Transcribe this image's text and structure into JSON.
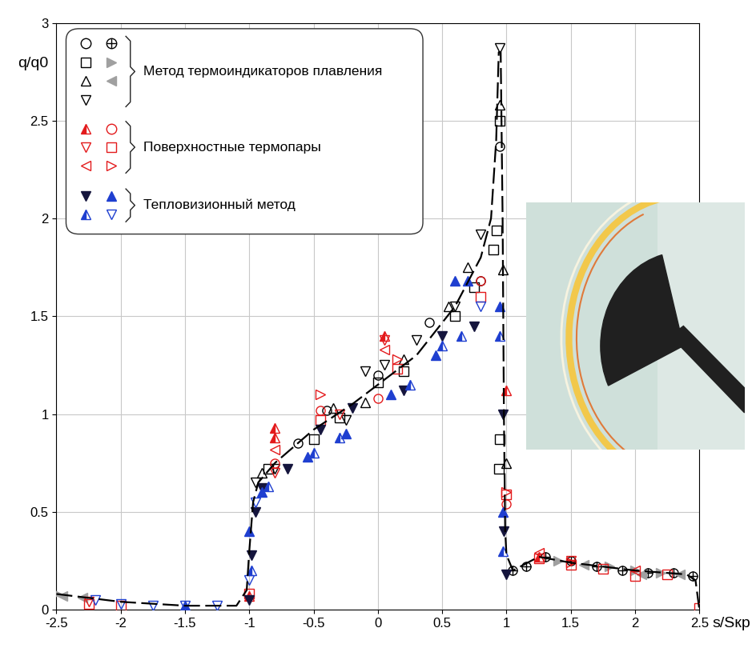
{
  "chart_data": {
    "type": "scatter",
    "x_label": "s/Sкр",
    "y_label": "q/q0",
    "xlim": [
      -2.5,
      2.5
    ],
    "xticks": [
      -2.5,
      -2,
      -1.5,
      -1,
      -0.5,
      0,
      0.5,
      1,
      1.5,
      2,
      2.5
    ],
    "ylim": [
      0,
      3
    ],
    "yticks": [
      0,
      0.5,
      1,
      1.5,
      2,
      2.5,
      3
    ],
    "grid": true,
    "curve": {
      "color": "#000000",
      "line_style": "dashed",
      "x": [
        -2.5,
        -2.0,
        -1.5,
        -1.1,
        -1.02,
        -1.0,
        -0.97,
        -0.93,
        -0.8,
        -0.5,
        -0.2,
        0.0,
        0.3,
        0.6,
        0.8,
        0.88,
        0.92,
        0.94,
        0.955,
        0.97,
        0.98,
        0.99,
        1.0,
        1.05,
        1.25,
        1.5,
        2.0,
        2.4,
        2.47,
        2.5
      ],
      "values": [
        0.08,
        0.04,
        0.02,
        0.02,
        0.1,
        0.3,
        0.55,
        0.65,
        0.75,
        0.92,
        1.05,
        1.15,
        1.3,
        1.55,
        1.8,
        2.0,
        2.4,
        2.85,
        2.85,
        2.0,
        1.0,
        0.4,
        0.28,
        0.2,
        0.27,
        0.24,
        0.2,
        0.18,
        0.15,
        0.0
      ]
    },
    "groups": [
      {
        "name": "Метод термоиндикаторов плавления",
        "series": [
          {
            "color": "#000000",
            "marker": "circle_open",
            "x": [
              -0.62,
              -0.4,
              0.0,
              0.4,
              0.8,
              0.95
            ],
            "values": [
              0.85,
              1.02,
              1.2,
              1.47,
              1.68,
              2.37
            ]
          },
          {
            "color": "#000000",
            "marker": "square_open",
            "x": [
              -0.85,
              -0.5,
              -0.3,
              0.0,
              0.2,
              0.6,
              0.75,
              0.9,
              0.92,
              0.95,
              0.95,
              0.94
            ],
            "values": [
              0.72,
              0.87,
              0.98,
              1.16,
              1.22,
              1.5,
              1.65,
              1.84,
              1.94,
              2.5,
              0.87,
              0.72
            ]
          },
          {
            "color": "#000000",
            "marker": "triangle_up_open",
            "x": [
              -0.9,
              -0.35,
              -0.1,
              0.2,
              0.55,
              0.7,
              0.95,
              0.97,
              1.0
            ],
            "values": [
              0.7,
              1.03,
              1.06,
              1.28,
              1.55,
              1.75,
              2.58,
              1.74,
              0.75
            ]
          },
          {
            "color": "#000000",
            "marker": "triangle_down_open",
            "x": [
              -0.95,
              -0.8,
              -0.25,
              -0.1,
              0.05,
              0.3,
              0.6,
              0.8,
              0.95
            ],
            "values": [
              0.65,
              0.72,
              0.97,
              1.22,
              1.25,
              1.38,
              1.55,
              1.92,
              2.87
            ]
          },
          {
            "color": "#000000",
            "marker": "circle_plus",
            "x": [
              1.05,
              1.15,
              1.3,
              1.5,
              1.7,
              1.9,
              2.1,
              2.3,
              2.45
            ],
            "values": [
              0.2,
              0.22,
              0.27,
              0.25,
              0.22,
              0.2,
              0.19,
              0.19,
              0.17
            ]
          },
          {
            "color": "#a0a0a0",
            "marker": "triangle_right_filled",
            "x": [
              -2.5,
              1.4,
              1.8,
              2.0,
              2.2
            ],
            "values": [
              0.08,
              0.25,
              0.22,
              0.2,
              0.19
            ]
          },
          {
            "color": "#a0a0a0",
            "marker": "triangle_left_filled",
            "x": [
              -2.45,
              -2.3,
              1.6,
              2.05,
              2.35
            ],
            "values": [
              0.07,
              0.06,
              0.23,
              0.18,
              0.18
            ]
          }
        ]
      },
      {
        "name": "Поверхностные термопары",
        "series": [
          {
            "color": "#e31a1c",
            "marker": "triangle_up_half",
            "x": [
              -1.0,
              -0.8,
              -0.8,
              0.05,
              1.0,
              1.25
            ],
            "values": [
              0.07,
              0.93,
              0.88,
              1.4,
              1.12,
              0.27
            ]
          },
          {
            "color": "#e31a1c",
            "marker": "triangle_down_open",
            "x": [
              -2.25,
              -0.8,
              -0.3,
              0.05,
              1.5
            ],
            "values": [
              0.04,
              0.7,
              1.0,
              1.38,
              0.25
            ]
          },
          {
            "color": "#e31a1c",
            "marker": "triangle_left_open",
            "x": [
              -0.8,
              0.05,
              1.25,
              2.0
            ],
            "values": [
              0.82,
              1.33,
              0.29,
              0.2
            ]
          },
          {
            "color": "#e31a1c",
            "marker": "circle_open",
            "x": [
              -0.8,
              -0.45,
              0.0,
              0.8,
              1.0
            ],
            "values": [
              0.75,
              1.02,
              1.08,
              1.68,
              0.54
            ]
          },
          {
            "color": "#e31a1c",
            "marker": "square_open",
            "x": [
              -0.45,
              0.15,
              0.8,
              1.0,
              -2.25,
              -2.0,
              -1.0,
              1.25,
              1.5,
              1.75,
              2.0,
              2.25,
              2.5
            ],
            "values": [
              0.97,
              1.23,
              1.6,
              0.59,
              0.03,
              0.02,
              0.08,
              0.26,
              0.23,
              0.21,
              0.17,
              0.18,
              0.01
            ]
          },
          {
            "color": "#e31a1c",
            "marker": "triangle_right_open",
            "x": [
              -0.45,
              0.15,
              1.0,
              1.5
            ],
            "values": [
              1.1,
              1.28,
              0.6,
              0.24
            ]
          }
        ]
      },
      {
        "name": "Тепловизионный метод",
        "series": [
          {
            "color": "#15153d",
            "marker": "triangle_down_filled",
            "x": [
              -1.0,
              -0.98,
              -0.95,
              -0.9,
              -0.7,
              -0.45,
              -0.2,
              0.2,
              0.5,
              0.75,
              0.97,
              0.98,
              1.0
            ],
            "values": [
              0.05,
              0.28,
              0.5,
              0.62,
              0.72,
              0.92,
              1.03,
              1.12,
              1.4,
              1.45,
              1.0,
              0.4,
              0.18
            ]
          },
          {
            "color": "#1f3fd0",
            "marker": "triangle_up_half",
            "x": [
              -0.98,
              -0.85,
              -0.5,
              -0.3,
              0.25,
              0.5,
              0.65,
              0.95,
              0.97
            ],
            "values": [
              0.2,
              0.63,
              0.8,
              0.88,
              1.15,
              1.35,
              1.4,
              1.4,
              0.3
            ]
          },
          {
            "color": "#1f3fd0",
            "marker": "triangle_up_filled",
            "x": [
              -1.5,
              -1.0,
              -0.9,
              -0.55,
              -0.25,
              0.1,
              0.45,
              0.6,
              0.7,
              0.95,
              0.97
            ],
            "values": [
              0.02,
              0.4,
              0.6,
              0.78,
              0.9,
              1.1,
              1.3,
              1.68,
              1.68,
              1.55,
              0.5
            ]
          },
          {
            "color": "#1f3fd0",
            "marker": "triangle_down_open",
            "x": [
              -2.2,
              -2.0,
              -1.75,
              -1.5,
              -1.25,
              -1.0,
              -0.95,
              0.8
            ],
            "values": [
              0.05,
              0.03,
              0.02,
              0.02,
              0.02,
              0.15,
              0.55,
              1.55
            ]
          }
        ]
      }
    ]
  }
}
